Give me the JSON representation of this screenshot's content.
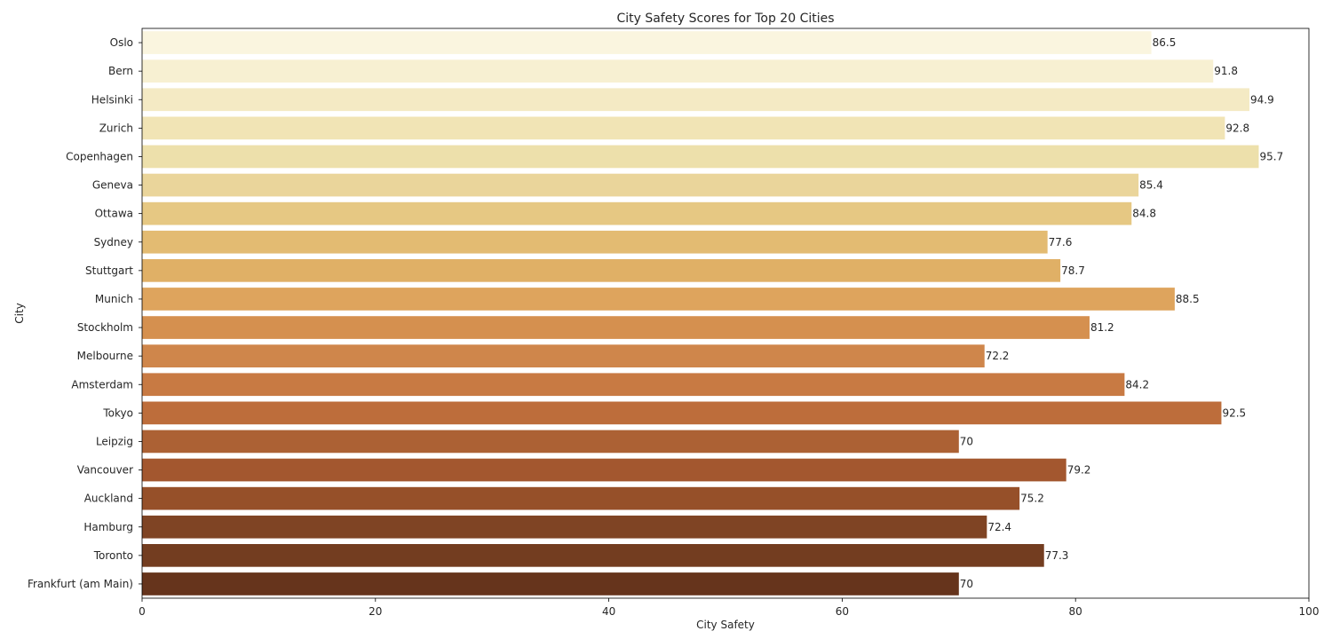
{
  "chart_data": {
    "type": "bar",
    "orientation": "horizontal",
    "title": "City Safety Scores for Top 20 Cities",
    "xlabel": "City Safety",
    "ylabel": "City",
    "xlim": [
      0,
      100
    ],
    "x_ticks": [
      0,
      20,
      40,
      60,
      80,
      100
    ],
    "grid": false,
    "categories": [
      "Oslo",
      "Bern",
      "Helsinki",
      "Zurich",
      "Copenhagen",
      "Geneva",
      "Ottawa",
      "Sydney",
      "Stuttgart",
      "Munich",
      "Stockholm",
      "Melbourne",
      "Amsterdam",
      "Tokyo",
      "Leipzig",
      "Vancouver",
      "Auckland",
      "Hamburg",
      "Toronto",
      "Frankfurt (am Main)"
    ],
    "values": [
      86.5,
      91.8,
      94.9,
      92.8,
      95.7,
      85.4,
      84.8,
      77.6,
      78.7,
      88.5,
      81.2,
      72.2,
      84.2,
      92.5,
      70,
      79.2,
      75.2,
      72.4,
      77.3,
      70
    ],
    "value_labels": [
      "86.5",
      "91.8",
      "94.9",
      "92.8",
      "95.7",
      "85.4",
      "84.8",
      "77.6",
      "78.7",
      "88.5",
      "81.2",
      "72.2",
      "84.2",
      "92.5",
      "70",
      "79.2",
      "75.2",
      "72.4",
      "77.3",
      "70"
    ],
    "colors": [
      "#faf5df",
      "#f7f0d2",
      "#f4eac4",
      "#f1e4b5",
      "#ede0ab",
      "#ead59b",
      "#e6c883",
      "#e3bb72",
      "#e0b066",
      "#dea45d",
      "#d5904f",
      "#cf864b",
      "#c87a43",
      "#bd6d3b",
      "#ac6134",
      "#a3572f",
      "#965029",
      "#7f4424",
      "#733d20",
      "#66341c"
    ]
  }
}
